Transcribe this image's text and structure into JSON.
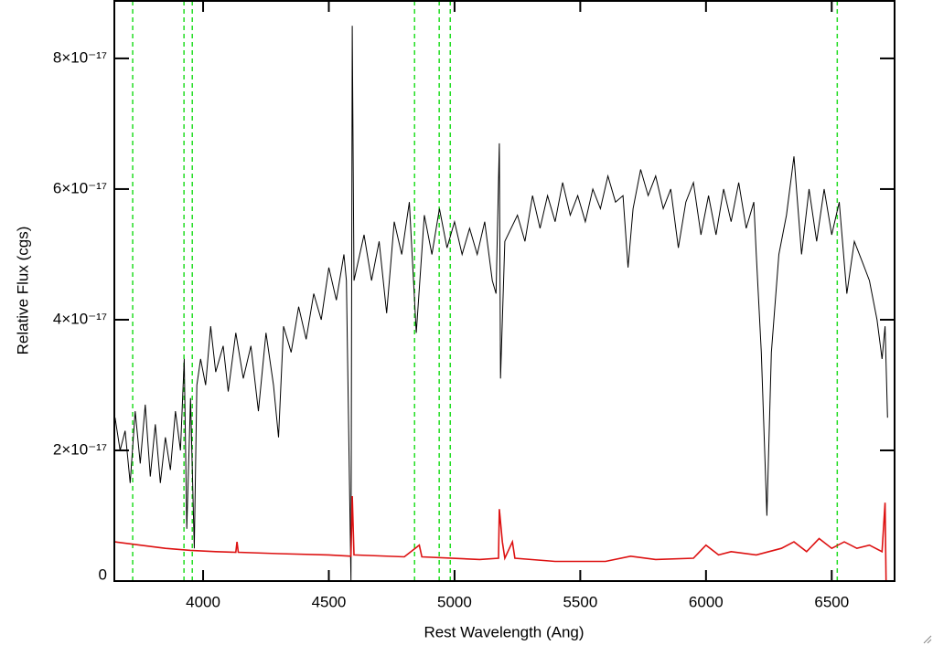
{
  "chart_data": {
    "type": "line",
    "x_label": "Rest Wavelength (Ang)",
    "y_label": "Relative Flux (cgs)",
    "xlim": [
      3647,
      6750
    ],
    "ylim": [
      0,
      8.88e-17
    ],
    "xticks": [
      4000,
      4500,
      5000,
      5500,
      6000,
      6500
    ],
    "yticks": [
      0,
      {
        "value": 2e-17,
        "label": "2×10⁻¹⁷"
      },
      {
        "value": 4e-17,
        "label": "4×10⁻¹⁷"
      },
      {
        "value": 6e-17,
        "label": "6×10⁻¹⁷"
      },
      {
        "value": 8e-17,
        "label": "8×10⁻¹⁷"
      }
    ],
    "reference_lines": {
      "color": "#22dd22",
      "x": [
        3720,
        3924,
        3957,
        4841,
        4939,
        4983,
        6522
      ]
    },
    "series": [
      {
        "color": "#000000",
        "x": [
          3650,
          3670,
          3690,
          3710,
          3730,
          3750,
          3770,
          3790,
          3810,
          3830,
          3850,
          3870,
          3890,
          3910,
          3925,
          3935,
          3950,
          3965,
          3975,
          3990,
          4010,
          4030,
          4050,
          4080,
          4100,
          4130,
          4160,
          4190,
          4220,
          4250,
          4280,
          4300,
          4320,
          4350,
          4380,
          4410,
          4440,
          4470,
          4500,
          4530,
          4560,
          4570,
          4588,
          4593,
          4600,
          4640,
          4670,
          4700,
          4730,
          4760,
          4790,
          4820,
          4848,
          4880,
          4910,
          4940,
          4970,
          5000,
          5030,
          5060,
          5090,
          5120,
          5150,
          5165,
          5178,
          5183,
          5200,
          5250,
          5280,
          5310,
          5340,
          5370,
          5400,
          5430,
          5460,
          5490,
          5520,
          5550,
          5580,
          5610,
          5640,
          5670,
          5690,
          5710,
          5740,
          5770,
          5800,
          5830,
          5860,
          5890,
          5920,
          5950,
          5980,
          6010,
          6040,
          6070,
          6100,
          6130,
          6160,
          6190,
          6200,
          6220,
          6242,
          6260,
          6290,
          6320,
          6350,
          6380,
          6410,
          6440,
          6470,
          6500,
          6530,
          6560,
          6590,
          6620,
          6650,
          6680,
          6700,
          6712,
          6722
        ],
        "values": [
          2.5e-17,
          2e-17,
          2.3e-17,
          1.5e-17,
          2.6e-17,
          1.8e-17,
          2.7e-17,
          1.6e-17,
          2.4e-17,
          1.5e-17,
          2.2e-17,
          1.7e-17,
          2.6e-17,
          2e-17,
          3.4e-17,
          8e-18,
          2.8e-17,
          5e-18,
          3e-17,
          3.4e-17,
          3e-17,
          3.9e-17,
          3.2e-17,
          3.6e-17,
          2.9e-17,
          3.8e-17,
          3.1e-17,
          3.6e-17,
          2.6e-17,
          3.8e-17,
          3e-17,
          2.2e-17,
          3.9e-17,
          3.5e-17,
          4.2e-17,
          3.7e-17,
          4.4e-17,
          4e-17,
          4.8e-17,
          4.3e-17,
          5e-17,
          4.6e-17,
          0,
          8.5e-17,
          4.6e-17,
          5.3e-17,
          4.6e-17,
          5.2e-17,
          4.1e-17,
          5.5e-17,
          5e-17,
          5.8e-17,
          3.8e-17,
          5.6e-17,
          5e-17,
          5.7e-17,
          5.1e-17,
          5.5e-17,
          5e-17,
          5.4e-17,
          5e-17,
          5.5e-17,
          4.6e-17,
          4.4e-17,
          6.7e-17,
          3.1e-17,
          5.2e-17,
          5.6e-17,
          5.2e-17,
          5.9e-17,
          5.4e-17,
          5.9e-17,
          5.5e-17,
          6.1e-17,
          5.6e-17,
          5.9e-17,
          5.5e-17,
          6e-17,
          5.7e-17,
          6.2e-17,
          5.8e-17,
          5.9e-17,
          4.8e-17,
          5.7e-17,
          6.3e-17,
          5.9e-17,
          6.2e-17,
          5.7e-17,
          6e-17,
          5.1e-17,
          5.8e-17,
          6.1e-17,
          5.3e-17,
          5.9e-17,
          5.3e-17,
          6e-17,
          5.5e-17,
          6.1e-17,
          5.4e-17,
          5.8e-17,
          5e-17,
          3.5e-17,
          1e-17,
          3.5e-17,
          5e-17,
          5.6e-17,
          6.5e-17,
          5e-17,
          6e-17,
          5.2e-17,
          6e-17,
          5.3e-17,
          5.8e-17,
          4.4e-17,
          5.2e-17,
          4.9e-17,
          4.6e-17,
          4e-17,
          3.4e-17,
          3.9e-17,
          2.5e-17
        ]
      },
      {
        "color": "#dd1111",
        "x": [
          3650,
          3750,
          3850,
          3950,
          4050,
          4130,
          4135,
          4140,
          4300,
          4500,
          4588,
          4593,
          4600,
          4800,
          4860,
          4870,
          5100,
          5175,
          5178,
          5190,
          5200,
          5230,
          5240,
          5400,
          5600,
          5700,
          5800,
          5950,
          6000,
          6050,
          6100,
          6200,
          6300,
          6350,
          6400,
          6450,
          6500,
          6550,
          6600,
          6650,
          6700,
          6712,
          6716
        ],
        "values": [
          6e-18,
          5.5e-18,
          5e-18,
          4.7e-18,
          4.5e-18,
          4.4e-18,
          6e-18,
          4.4e-18,
          4.2e-18,
          4e-18,
          3.8e-18,
          1.3e-17,
          4e-18,
          3.7e-18,
          5.5e-18,
          3.7e-18,
          3.3e-18,
          3.5e-18,
          1.1e-17,
          6e-18,
          3.5e-18,
          6e-18,
          3.5e-18,
          3e-18,
          3e-18,
          3.8e-18,
          3.3e-18,
          3.5e-18,
          5.5e-18,
          4e-18,
          4.5e-18,
          4e-18,
          5e-18,
          6e-18,
          4.5e-18,
          6.5e-18,
          5e-18,
          6e-18,
          5e-18,
          5.5e-18,
          4.5e-18,
          1.2e-17,
          0
        ]
      }
    ]
  }
}
